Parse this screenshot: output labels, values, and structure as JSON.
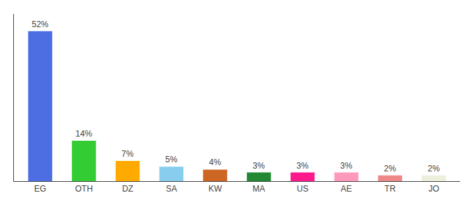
{
  "chart_data": {
    "type": "bar",
    "categories": [
      "EG",
      "OTH",
      "DZ",
      "SA",
      "KW",
      "MA",
      "US",
      "AE",
      "TR",
      "JO"
    ],
    "values": [
      52,
      14,
      7,
      5,
      4,
      3,
      3,
      3,
      2,
      2
    ],
    "value_labels": [
      "52%",
      "14%",
      "7%",
      "5%",
      "4%",
      "3%",
      "3%",
      "3%",
      "2%",
      "2%"
    ],
    "colors": [
      "#4d6ee3",
      "#33cc33",
      "#ffaa00",
      "#88ccee",
      "#cc6622",
      "#228833",
      "#ff1a8c",
      "#ff99bb",
      "#ee8888",
      "#eeeedd"
    ],
    "ylim": [
      0,
      58
    ],
    "grid": false,
    "data_labels": true,
    "tick_labels": "x"
  }
}
